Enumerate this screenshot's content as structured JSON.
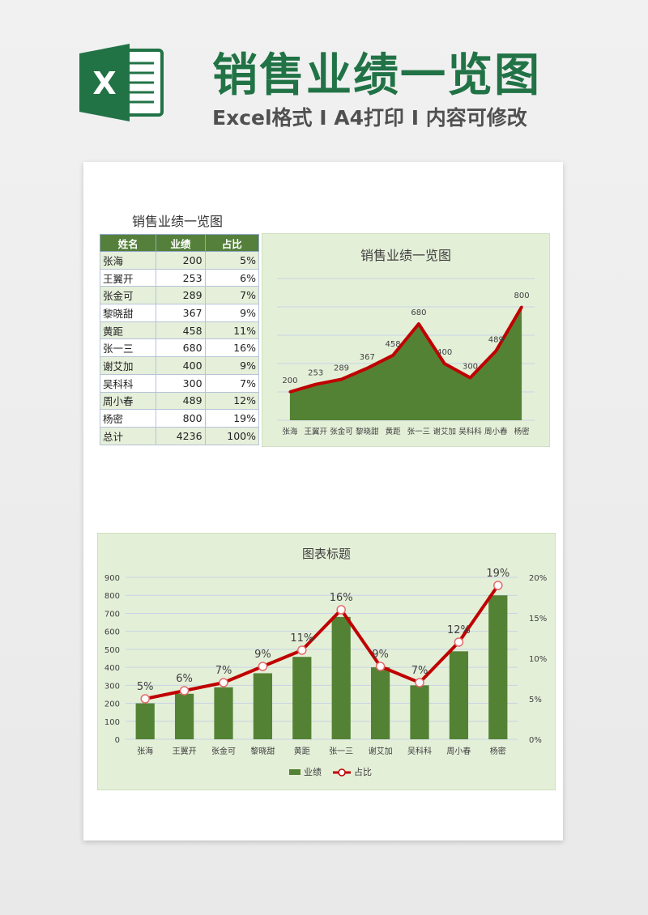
{
  "header": {
    "logo_letter": "X",
    "title": "销售业绩一览图",
    "subtitle": "Excel格式 I A4打印 I 内容可修改",
    "accent": "#217346"
  },
  "sheet": {
    "title": "销售业绩一览图",
    "columns": [
      "姓名",
      "业绩",
      "占比"
    ],
    "rows": [
      [
        "张海",
        "200",
        "5%"
      ],
      [
        "王翼开",
        "253",
        "6%"
      ],
      [
        "张金可",
        "289",
        "7%"
      ],
      [
        "黎晓甜",
        "367",
        "9%"
      ],
      [
        "黄距",
        "458",
        "11%"
      ],
      [
        "张一三",
        "680",
        "16%"
      ],
      [
        "谢艾加",
        "400",
        "9%"
      ],
      [
        "吴科科",
        "300",
        "7%"
      ],
      [
        "周小春",
        "489",
        "12%"
      ],
      [
        "杨密",
        "800",
        "19%"
      ],
      [
        "总计",
        "4236",
        "100%"
      ]
    ]
  },
  "chart_data": [
    {
      "type": "area",
      "title": "销售业绩一览图",
      "categories": [
        "张海",
        "王翼开",
        "张金可",
        "黎晓甜",
        "黄距",
        "张一三",
        "谢艾加",
        "吴科科",
        "周小春",
        "杨密"
      ],
      "series": [
        {
          "values": [
            200,
            253,
            289,
            367,
            458,
            680,
            400,
            300,
            489,
            800
          ]
        }
      ],
      "ylim": [
        0,
        1000
      ],
      "grid": true,
      "colors": {
        "area": "#548235",
        "line": "#c00000"
      }
    },
    {
      "type": "bar",
      "title": "图表标题",
      "categories": [
        "张海",
        "王翼开",
        "张金可",
        "黎晓甜",
        "黄距",
        "张一三",
        "谢艾加",
        "吴科科",
        "周小春",
        "杨密"
      ],
      "series": [
        {
          "name": "业绩",
          "type": "bar",
          "axis": "left",
          "values": [
            200,
            253,
            289,
            367,
            458,
            680,
            400,
            300,
            489,
            800
          ]
        },
        {
          "name": "占比",
          "type": "line",
          "axis": "right",
          "values": [
            5,
            6,
            7,
            9,
            11,
            16,
            9,
            7,
            12,
            19
          ],
          "labels": [
            "5%",
            "6%",
            "7%",
            "9%",
            "11%",
            "16%",
            "9%",
            "7%",
            "12%",
            "19%"
          ]
        }
      ],
      "y_left": {
        "ylim": [
          0,
          900
        ],
        "ticks": [
          "0",
          "100",
          "200",
          "300",
          "400",
          "500",
          "600",
          "700",
          "800",
          "900"
        ]
      },
      "y_right": {
        "ylim": [
          0,
          20
        ],
        "ticks": [
          "0%",
          "5%",
          "10%",
          "15%",
          "20%"
        ]
      },
      "legend": "bottom",
      "grid": true,
      "colors": {
        "bar": "#548235",
        "line": "#c00000"
      }
    }
  ]
}
